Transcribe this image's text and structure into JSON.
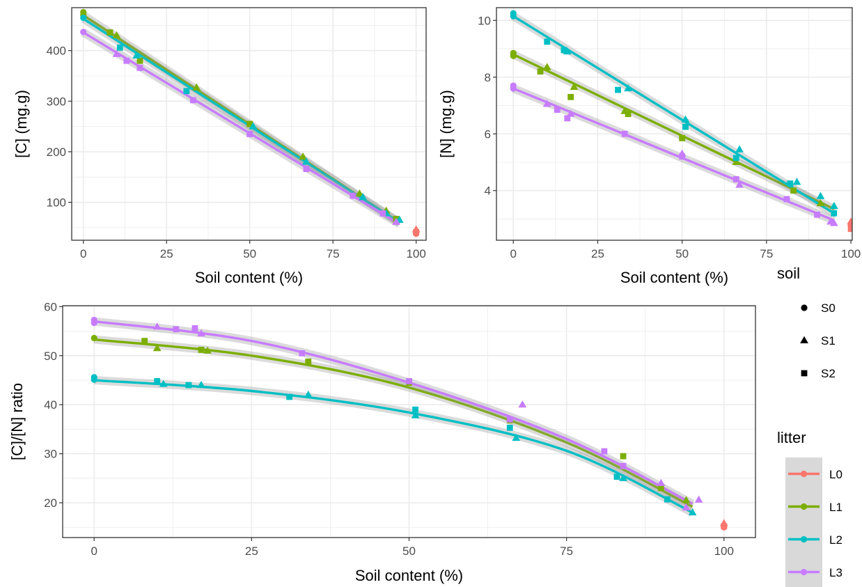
{
  "colors": {
    "L0": "#F8766D",
    "L1": "#7CAE00",
    "L2": "#00BFC4",
    "L3": "#C77CFF",
    "grid_major": "#ebebeb",
    "grid_minor": "#f5f5f5",
    "ribbon": "#999999",
    "panel_border": "#333333"
  },
  "legends": {
    "soil": {
      "title": "soil",
      "items": [
        {
          "label": "S0",
          "shape": "circle"
        },
        {
          "label": "S1",
          "shape": "triangle"
        },
        {
          "label": "S2",
          "shape": "square"
        }
      ]
    },
    "litter": {
      "title": "litter",
      "items": [
        {
          "label": "L0",
          "color": "#F8766D"
        },
        {
          "label": "L1",
          "color": "#7CAE00"
        },
        {
          "label": "L2",
          "color": "#00BFC4"
        },
        {
          "label": "L3",
          "color": "#C77CFF"
        }
      ]
    }
  },
  "chart_data": [
    {
      "type": "scatter",
      "xlabel": "Soil content (%)",
      "ylabel": "[C] (mg.g)",
      "xlim": [
        -3.5,
        103
      ],
      "ylim": [
        25,
        485
      ],
      "xticks": [
        0,
        25,
        50,
        75,
        100
      ],
      "xtick_labels": [
        "0",
        "25",
        "50",
        "75",
        "100"
      ],
      "yticks": [
        100,
        200,
        300,
        400
      ],
      "ytick_labels": [
        "100",
        "200",
        "300",
        "400"
      ],
      "grid": true,
      "fit": "linear",
      "series": [
        {
          "litter": "L0",
          "points": [
            {
              "x": 100,
              "y": 38,
              "shape": "circle"
            },
            {
              "x": 100,
              "y": 46,
              "shape": "triangle"
            },
            {
              "x": 100,
              "y": 41,
              "shape": "square"
            }
          ],
          "fit": null
        },
        {
          "litter": "L1",
          "points": [
            {
              "x": 0,
              "y": 476,
              "shape": "circle"
            },
            {
              "x": 0,
              "y": 470,
              "shape": "circle"
            },
            {
              "x": 10,
              "y": 430,
              "shape": "triangle"
            },
            {
              "x": 8,
              "y": 436,
              "shape": "square"
            },
            {
              "x": 17,
              "y": 380,
              "shape": "square"
            },
            {
              "x": 34,
              "y": 327,
              "shape": "triangle"
            },
            {
              "x": 50,
              "y": 255,
              "shape": "square"
            },
            {
              "x": 66,
              "y": 190,
              "shape": "triangle"
            },
            {
              "x": 83,
              "y": 117,
              "shape": "triangle"
            },
            {
              "x": 91,
              "y": 83,
              "shape": "triangle"
            },
            {
              "x": 94,
              "y": 67,
              "shape": "square"
            }
          ],
          "fit": {
            "x": [
              0,
              95
            ],
            "y": [
              470,
              60
            ]
          }
        },
        {
          "litter": "L2",
          "points": [
            {
              "x": 0,
              "y": 465,
              "shape": "circle"
            },
            {
              "x": 11,
              "y": 406,
              "shape": "square"
            },
            {
              "x": 16,
              "y": 390,
              "shape": "triangle"
            },
            {
              "x": 31,
              "y": 320,
              "shape": "square"
            },
            {
              "x": 51,
              "y": 250,
              "shape": "triangle"
            },
            {
              "x": 67,
              "y": 180,
              "shape": "triangle"
            },
            {
              "x": 84,
              "y": 110,
              "shape": "triangle"
            },
            {
              "x": 91,
              "y": 78,
              "shape": "triangle"
            },
            {
              "x": 95,
              "y": 65,
              "shape": "triangle"
            }
          ],
          "fit": {
            "x": [
              0,
              95
            ],
            "y": [
              463,
              60
            ]
          }
        },
        {
          "litter": "L3",
          "points": [
            {
              "x": 0,
              "y": 437,
              "shape": "circle"
            },
            {
              "x": 10,
              "y": 393,
              "shape": "triangle"
            },
            {
              "x": 13,
              "y": 380,
              "shape": "square"
            },
            {
              "x": 17,
              "y": 366,
              "shape": "square"
            },
            {
              "x": 33,
              "y": 302,
              "shape": "square"
            },
            {
              "x": 50,
              "y": 235,
              "shape": "square"
            },
            {
              "x": 67,
              "y": 166,
              "shape": "square"
            },
            {
              "x": 81,
              "y": 113,
              "shape": "square"
            },
            {
              "x": 90,
              "y": 78,
              "shape": "square"
            },
            {
              "x": 94,
              "y": 61,
              "shape": "triangle"
            }
          ],
          "fit": {
            "x": [
              0,
              95
            ],
            "y": [
              436,
              57
            ]
          }
        }
      ]
    },
    {
      "type": "scatter",
      "xlabel": "Soil content (%)",
      "ylabel": "[N] (mg.g)",
      "xlim": [
        -5,
        100.4
      ],
      "ylim": [
        2.25,
        10.45
      ],
      "xticks": [
        0,
        25,
        50,
        75,
        100
      ],
      "xtick_labels": [
        "0",
        "25",
        "50",
        "75",
        "100"
      ],
      "yticks": [
        4,
        6,
        8,
        10
      ],
      "ytick_labels": [
        "4",
        "6",
        "8",
        "10"
      ],
      "grid": true,
      "fit": "linear",
      "series": [
        {
          "litter": "L0",
          "points": [
            {
              "x": 100,
              "y": 2.75,
              "shape": "circle"
            },
            {
              "x": 100,
              "y": 2.9,
              "shape": "triangle"
            },
            {
              "x": 100,
              "y": 2.65,
              "shape": "square"
            }
          ],
          "fit": null
        },
        {
          "litter": "L1",
          "points": [
            {
              "x": 0,
              "y": 8.85,
              "shape": "circle"
            },
            {
              "x": 0,
              "y": 8.75,
              "shape": "circle"
            },
            {
              "x": 10,
              "y": 8.35,
              "shape": "triangle"
            },
            {
              "x": 8,
              "y": 8.2,
              "shape": "square"
            },
            {
              "x": 18,
              "y": 7.65,
              "shape": "triangle"
            },
            {
              "x": 17,
              "y": 7.3,
              "shape": "square"
            },
            {
              "x": 33,
              "y": 6.8,
              "shape": "triangle"
            },
            {
              "x": 34,
              "y": 6.7,
              "shape": "square"
            },
            {
              "x": 50,
              "y": 5.85,
              "shape": "square"
            },
            {
              "x": 66,
              "y": 5.0,
              "shape": "triangle"
            },
            {
              "x": 83,
              "y": 4.0,
              "shape": "square"
            },
            {
              "x": 91,
              "y": 3.55,
              "shape": "triangle"
            },
            {
              "x": 95,
              "y": 3.45,
              "shape": "triangle"
            }
          ],
          "fit": {
            "x": [
              0,
              95
            ],
            "y": [
              8.8,
              3.35
            ]
          }
        },
        {
          "litter": "L2",
          "points": [
            {
              "x": 0,
              "y": 10.25,
              "shape": "circle"
            },
            {
              "x": 0,
              "y": 10.15,
              "shape": "circle"
            },
            {
              "x": 10,
              "y": 9.25,
              "shape": "square"
            },
            {
              "x": 16,
              "y": 8.9,
              "shape": "triangle"
            },
            {
              "x": 15,
              "y": 8.95,
              "shape": "square"
            },
            {
              "x": 34,
              "y": 7.6,
              "shape": "triangle"
            },
            {
              "x": 31,
              "y": 7.55,
              "shape": "square"
            },
            {
              "x": 51,
              "y": 6.5,
              "shape": "triangle"
            },
            {
              "x": 51,
              "y": 6.25,
              "shape": "square"
            },
            {
              "x": 67,
              "y": 5.45,
              "shape": "triangle"
            },
            {
              "x": 66,
              "y": 5.15,
              "shape": "square"
            },
            {
              "x": 84,
              "y": 4.3,
              "shape": "triangle"
            },
            {
              "x": 82,
              "y": 4.25,
              "shape": "square"
            },
            {
              "x": 91,
              "y": 3.8,
              "shape": "triangle"
            },
            {
              "x": 95,
              "y": 3.45,
              "shape": "triangle"
            },
            {
              "x": 95,
              "y": 3.2,
              "shape": "square"
            }
          ],
          "fit": {
            "x": [
              0,
              95
            ],
            "y": [
              10.15,
              3.2
            ]
          }
        },
        {
          "litter": "L3",
          "points": [
            {
              "x": 0,
              "y": 7.7,
              "shape": "circle"
            },
            {
              "x": 0,
              "y": 7.6,
              "shape": "circle"
            },
            {
              "x": 10,
              "y": 7.05,
              "shape": "triangle"
            },
            {
              "x": 13,
              "y": 6.85,
              "shape": "square"
            },
            {
              "x": 17,
              "y": 6.7,
              "shape": "triangle"
            },
            {
              "x": 16,
              "y": 6.55,
              "shape": "square"
            },
            {
              "x": 33,
              "y": 6.0,
              "shape": "square"
            },
            {
              "x": 50,
              "y": 5.3,
              "shape": "triangle"
            },
            {
              "x": 50,
              "y": 5.2,
              "shape": "square"
            },
            {
              "x": 66,
              "y": 4.4,
              "shape": "square"
            },
            {
              "x": 67,
              "y": 4.2,
              "shape": "triangle"
            },
            {
              "x": 81,
              "y": 3.7,
              "shape": "square"
            },
            {
              "x": 90,
              "y": 3.15,
              "shape": "square"
            },
            {
              "x": 94,
              "y": 2.9,
              "shape": "triangle"
            },
            {
              "x": 95,
              "y": 2.85,
              "shape": "triangle"
            }
          ],
          "fit": {
            "x": [
              0,
              95
            ],
            "y": [
              7.6,
              2.95
            ]
          }
        }
      ]
    },
    {
      "type": "scatter",
      "xlabel": "Soil content (%)",
      "ylabel": "[C]/[N] ratio",
      "xlim": [
        -5,
        105
      ],
      "ylim": [
        12.9,
        60.2
      ],
      "xticks": [
        0,
        25,
        50,
        75,
        100
      ],
      "xtick_labels": [
        "0",
        "25",
        "50",
        "75",
        "100"
      ],
      "yticks": [
        20,
        30,
        40,
        50,
        60
      ],
      "ytick_labels": [
        "20",
        "30",
        "40",
        "50",
        "60"
      ],
      "grid": true,
      "fit": "quadratic",
      "series": [
        {
          "litter": "L0",
          "points": [
            {
              "x": 100,
              "y": 15.0,
              "shape": "circle"
            },
            {
              "x": 100,
              "y": 15.8,
              "shape": "triangle"
            },
            {
              "x": 100,
              "y": 15.2,
              "shape": "square"
            }
          ],
          "fit": null
        },
        {
          "litter": "L1",
          "points": [
            {
              "x": 0,
              "y": 53.6,
              "shape": "circle"
            },
            {
              "x": 10,
              "y": 51.5,
              "shape": "triangle"
            },
            {
              "x": 8,
              "y": 53.0,
              "shape": "square"
            },
            {
              "x": 18,
              "y": 51.0,
              "shape": "triangle"
            },
            {
              "x": 17,
              "y": 51.2,
              "shape": "square"
            },
            {
              "x": 34,
              "y": 48.8,
              "shape": "square"
            },
            {
              "x": 50,
              "y": 44.5,
              "shape": "square"
            },
            {
              "x": 66,
              "y": 36.8,
              "shape": "square"
            },
            {
              "x": 84,
              "y": 29.5,
              "shape": "square"
            },
            {
              "x": 90,
              "y": 23.0,
              "shape": "square"
            },
            {
              "x": 94,
              "y": 20.5,
              "shape": "triangle"
            }
          ],
          "fit": {
            "x": [
              0,
              25,
              50,
              75,
              95
            ],
            "y": [
              53.3,
              50.0,
              43.5,
              32.3,
              19.2
            ]
          }
        },
        {
          "litter": "L2",
          "points": [
            {
              "x": 0,
              "y": 45.6,
              "shape": "circle"
            },
            {
              "x": 0,
              "y": 45.1,
              "shape": "circle"
            },
            {
              "x": 11,
              "y": 44.2,
              "shape": "triangle"
            },
            {
              "x": 10,
              "y": 44.8,
              "shape": "square"
            },
            {
              "x": 17,
              "y": 44.0,
              "shape": "triangle"
            },
            {
              "x": 15,
              "y": 44.0,
              "shape": "square"
            },
            {
              "x": 34,
              "y": 42.0,
              "shape": "triangle"
            },
            {
              "x": 31,
              "y": 41.6,
              "shape": "square"
            },
            {
              "x": 51,
              "y": 37.8,
              "shape": "triangle"
            },
            {
              "x": 51,
              "y": 39.0,
              "shape": "square"
            },
            {
              "x": 67,
              "y": 33.2,
              "shape": "triangle"
            },
            {
              "x": 66,
              "y": 35.3,
              "shape": "square"
            },
            {
              "x": 84,
              "y": 25.0,
              "shape": "triangle"
            },
            {
              "x": 83,
              "y": 25.3,
              "shape": "square"
            },
            {
              "x": 91,
              "y": 20.7,
              "shape": "square"
            },
            {
              "x": 95,
              "y": 18.0,
              "shape": "triangle"
            }
          ],
          "fit": {
            "x": [
              0,
              25,
              50,
              75,
              95
            ],
            "y": [
              45.0,
              42.8,
              38.4,
              30.6,
              18.0
            ]
          }
        },
        {
          "litter": "L3",
          "points": [
            {
              "x": 0,
              "y": 57.3,
              "shape": "circle"
            },
            {
              "x": 0,
              "y": 56.7,
              "shape": "circle"
            },
            {
              "x": 10,
              "y": 55.9,
              "shape": "triangle"
            },
            {
              "x": 13,
              "y": 55.4,
              "shape": "square"
            },
            {
              "x": 17,
              "y": 54.5,
              "shape": "triangle"
            },
            {
              "x": 16,
              "y": 55.6,
              "shape": "square"
            },
            {
              "x": 33,
              "y": 50.5,
              "shape": "square"
            },
            {
              "x": 50,
              "y": 44.8,
              "shape": "square"
            },
            {
              "x": 66,
              "y": 37.0,
              "shape": "square"
            },
            {
              "x": 68,
              "y": 40.0,
              "shape": "triangle"
            },
            {
              "x": 81,
              "y": 30.5,
              "shape": "square"
            },
            {
              "x": 84,
              "y": 27.5,
              "shape": "square"
            },
            {
              "x": 90,
              "y": 24.0,
              "shape": "triangle"
            },
            {
              "x": 94,
              "y": 19.0,
              "shape": "triangle"
            },
            {
              "x": 96,
              "y": 20.6,
              "shape": "triangle"
            }
          ],
          "fit": {
            "x": [
              0,
              25,
              50,
              75,
              95
            ],
            "y": [
              57.0,
              53.0,
              44.5,
              33.0,
              19.8
            ]
          }
        }
      ]
    }
  ]
}
